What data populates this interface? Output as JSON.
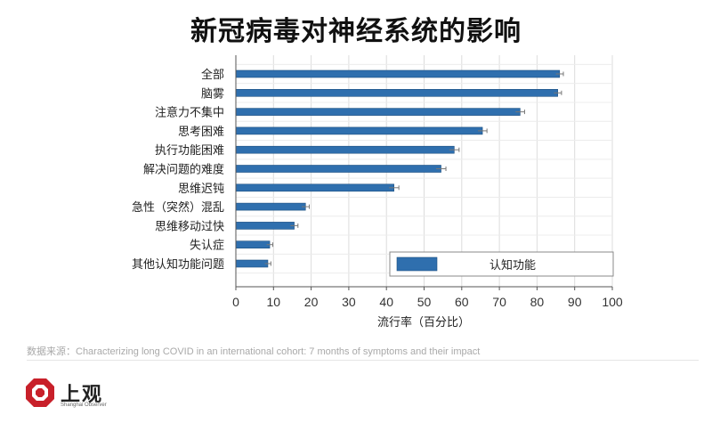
{
  "chart_data": {
    "type": "bar",
    "orientation": "horizontal",
    "title": "新冠病毒对神经系统的影响",
    "xlabel": "流行率（百分比）",
    "ylabel": "",
    "xlim": [
      0,
      100
    ],
    "xticks": [
      0,
      10,
      20,
      30,
      40,
      50,
      60,
      70,
      80,
      90,
      100
    ],
    "grid": true,
    "legend_position": "bottom-right",
    "legend": [
      "认知功能"
    ],
    "categories": [
      "全部",
      "脑雾",
      "注意力不集中",
      "思考困难",
      "执行功能困难",
      "解决问题的难度",
      "思维迟钝",
      "急性（突然）混乱",
      "思维移动过快",
      "失认症",
      "其他认知功能问题"
    ],
    "series": [
      {
        "name": "认知功能",
        "values": [
          86,
          85.5,
          75.5,
          65.5,
          58,
          54.5,
          42,
          18.5,
          15.5,
          9,
          8.5
        ],
        "errors": [
          1,
          1,
          1.2,
          1.2,
          1.3,
          1.3,
          1.3,
          1,
          1,
          0.8,
          0.8
        ]
      }
    ],
    "colors": {
      "bar": "#2f6fae",
      "bar_edge": "#1d4f80",
      "grid": "#dcdcdc",
      "axis": "#555555"
    }
  },
  "source_text": "数据来源：Characterizing long COVID in an international cohort: 7 months of symptoms and their impact",
  "logo": {
    "name": "上观",
    "subtitle": "Shanghai Observer",
    "color": "#c8202a"
  }
}
